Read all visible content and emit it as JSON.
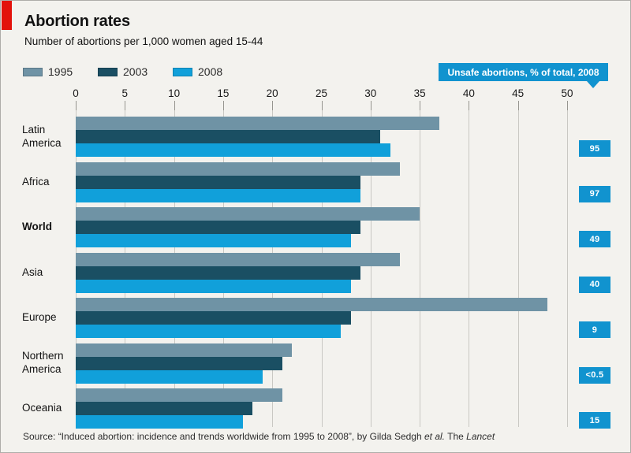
{
  "header": {
    "title": "Abortion rates",
    "subtitle": "Number of abortions per 1,000 women aged 15-44"
  },
  "legend": [
    {
      "label": "1995",
      "color": "#6f93a5"
    },
    {
      "label": "2003",
      "color": "#1a4f63"
    },
    {
      "label": "2008",
      "color": "#11a0da"
    }
  ],
  "callout": {
    "label": "Unsafe abortions, % of total, 2008",
    "color": "#1193cf"
  },
  "chart_data": {
    "type": "bar",
    "orientation": "horizontal",
    "title": "Abortion rates",
    "subtitle": "Number of abortions per 1,000 women aged 15-44",
    "categories": [
      "Latin\nAmerica",
      "Africa",
      "World",
      "Asia",
      "Europe",
      "Northern\nAmerica",
      "Oceania"
    ],
    "emphasized_category": "World",
    "series": [
      {
        "name": "1995",
        "color": "#6f93a5",
        "values": [
          37,
          33,
          35,
          33,
          48,
          22,
          21
        ]
      },
      {
        "name": "2003",
        "color": "#1a4f63",
        "values": [
          31,
          29,
          29,
          29,
          28,
          21,
          18
        ]
      },
      {
        "name": "2008",
        "color": "#11a0da",
        "values": [
          32,
          29,
          28,
          28,
          27,
          19,
          17
        ]
      }
    ],
    "badges": [
      "95",
      "97",
      "49",
      "40",
      "9",
      "<0.5",
      "15"
    ],
    "badges_label": "Unsafe abortions, % of total, 2008",
    "x_ticks": [
      0,
      5,
      10,
      15,
      20,
      25,
      30,
      35,
      40,
      45,
      50
    ],
    "xlim": [
      0,
      50
    ],
    "grid": "vertical",
    "legend_position": "top-left"
  },
  "source": {
    "prefix": "Source: “Induced abortion: incidence and trends worldwide from 1995 to 2008”, by Gilda Sedgh ",
    "italic1": "et al.",
    "mid": " The ",
    "italic2": "Lancet"
  },
  "colors": {
    "accent_red": "#e3120b",
    "bar_1995": "#6f93a5",
    "bar_2003": "#1a4f63",
    "bar_2008": "#11a0da",
    "badge_blue": "#1193cf",
    "background": "#f3f2ee",
    "gridline": "#c9c8c3"
  }
}
